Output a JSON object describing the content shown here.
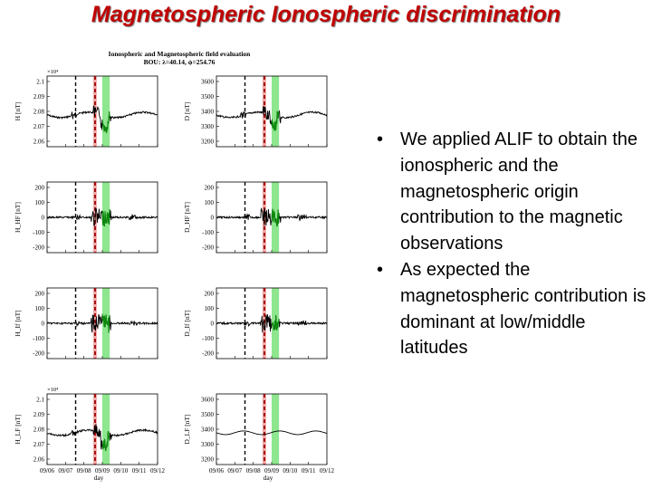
{
  "slide": {
    "title": "Magnetospheric Ionospheric discrimination",
    "bullets": [
      "We applied ALIF to obtain the ionospheric and the magnetospheric origin contribution to the magnetic observations",
      "As expected the magnetospheric contribution is dominant at low/middle latitudes"
    ]
  },
  "colors": {
    "title": "#c00000",
    "red_band": "#f4a9a9",
    "green_band": "#8ee68e",
    "dashed_line": "#000000",
    "red_line": "#c00000",
    "trace": "#000000",
    "green_trace": "#0a8a0a"
  },
  "figure": {
    "title": "Ionospheric and Magnetospheric field evaluation",
    "subtitle": "BOU: λ=40.14, ϕ=254.76",
    "xlabel": "day",
    "x_ticks": [
      "09/06",
      "09/07",
      "09/08",
      "09/09",
      "09/10",
      "09/11",
      "09/12"
    ],
    "exponent_label": "×10⁴",
    "panels": [
      {
        "ylabel": "H [nT]",
        "yticks": [
          "2.1",
          "2.09",
          "2.08",
          "2.07",
          "2.06"
        ],
        "exponent": true
      },
      {
        "ylabel": "D [nT]",
        "yticks": [
          "3600",
          "3500",
          "3400",
          "3300",
          "3200"
        ],
        "exponent": false
      },
      {
        "ylabel": "H_HF [nT]",
        "yticks": [
          "200",
          "100",
          "0",
          "-100",
          "-200"
        ],
        "exponent": false
      },
      {
        "ylabel": "D_HF [nT]",
        "yticks": [
          "200",
          "100",
          "0",
          "-100",
          "-200"
        ],
        "exponent": false
      },
      {
        "ylabel": "H_If [nT]",
        "yticks": [
          "200",
          "100",
          "0",
          "-100",
          "-200"
        ],
        "exponent": false
      },
      {
        "ylabel": "D_If [nT]",
        "yticks": [
          "200",
          "100",
          "0",
          "-100",
          "-200"
        ],
        "exponent": false
      },
      {
        "ylabel": "H_LF [nT]",
        "yticks": [
          "2.1",
          "2.09",
          "2.08",
          "2.07",
          "2.06"
        ],
        "exponent": true
      },
      {
        "ylabel": "D_LF [nT]",
        "yticks": [
          "3600",
          "3500",
          "3400",
          "3300",
          "3200"
        ],
        "exponent": false
      }
    ]
  }
}
